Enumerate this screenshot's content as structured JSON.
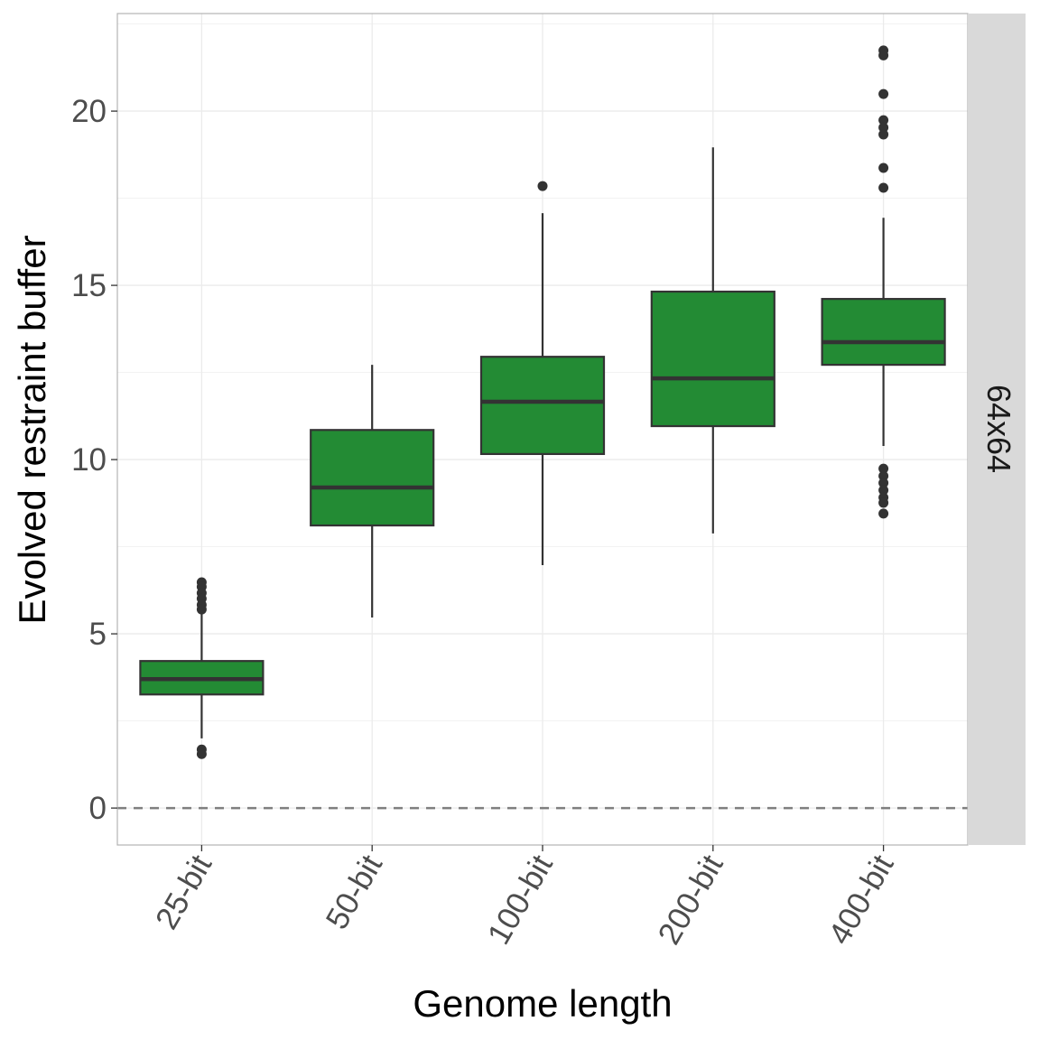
{
  "chart_data": {
    "type": "boxplot",
    "xlabel": "Genome length",
    "ylabel": "Evolved restraint buffer",
    "facet_label": "64x64",
    "ylim": [
      -1.06,
      22.8
    ],
    "yticks": [
      0,
      5,
      10,
      15,
      20
    ],
    "grid": true,
    "reference_line": {
      "y": 0,
      "style": "dashed"
    },
    "fill_color": "#238B34",
    "categories": [
      "25-bit",
      "50-bit",
      "100-bit",
      "200-bit",
      "400-bit"
    ],
    "boxes": [
      {
        "q1": 3.26,
        "median": 3.7,
        "q3": 4.22,
        "whisker_low": 2.0,
        "whisker_high": 5.57,
        "outliers": [
          6.48,
          6.35,
          6.17,
          6.01,
          5.83,
          5.7,
          1.68,
          1.55
        ]
      },
      {
        "q1": 8.11,
        "median": 9.2,
        "q3": 10.85,
        "whisker_low": 5.47,
        "whisker_high": 12.72,
        "outliers": []
      },
      {
        "q1": 10.16,
        "median": 11.66,
        "q3": 12.95,
        "whisker_low": 6.97,
        "whisker_high": 17.07,
        "outliers": [
          17.85
        ]
      },
      {
        "q1": 10.96,
        "median": 12.33,
        "q3": 14.82,
        "whisker_low": 7.88,
        "whisker_high": 18.96,
        "outliers": []
      },
      {
        "q1": 12.72,
        "median": 13.37,
        "q3": 14.61,
        "whisker_low": 10.39,
        "whisker_high": 16.94,
        "outliers": [
          21.74,
          21.6,
          20.49,
          19.74,
          19.53,
          19.33,
          18.37,
          17.8,
          9.74,
          9.53,
          9.33,
          9.12,
          8.91,
          8.76,
          8.45
        ]
      }
    ]
  }
}
